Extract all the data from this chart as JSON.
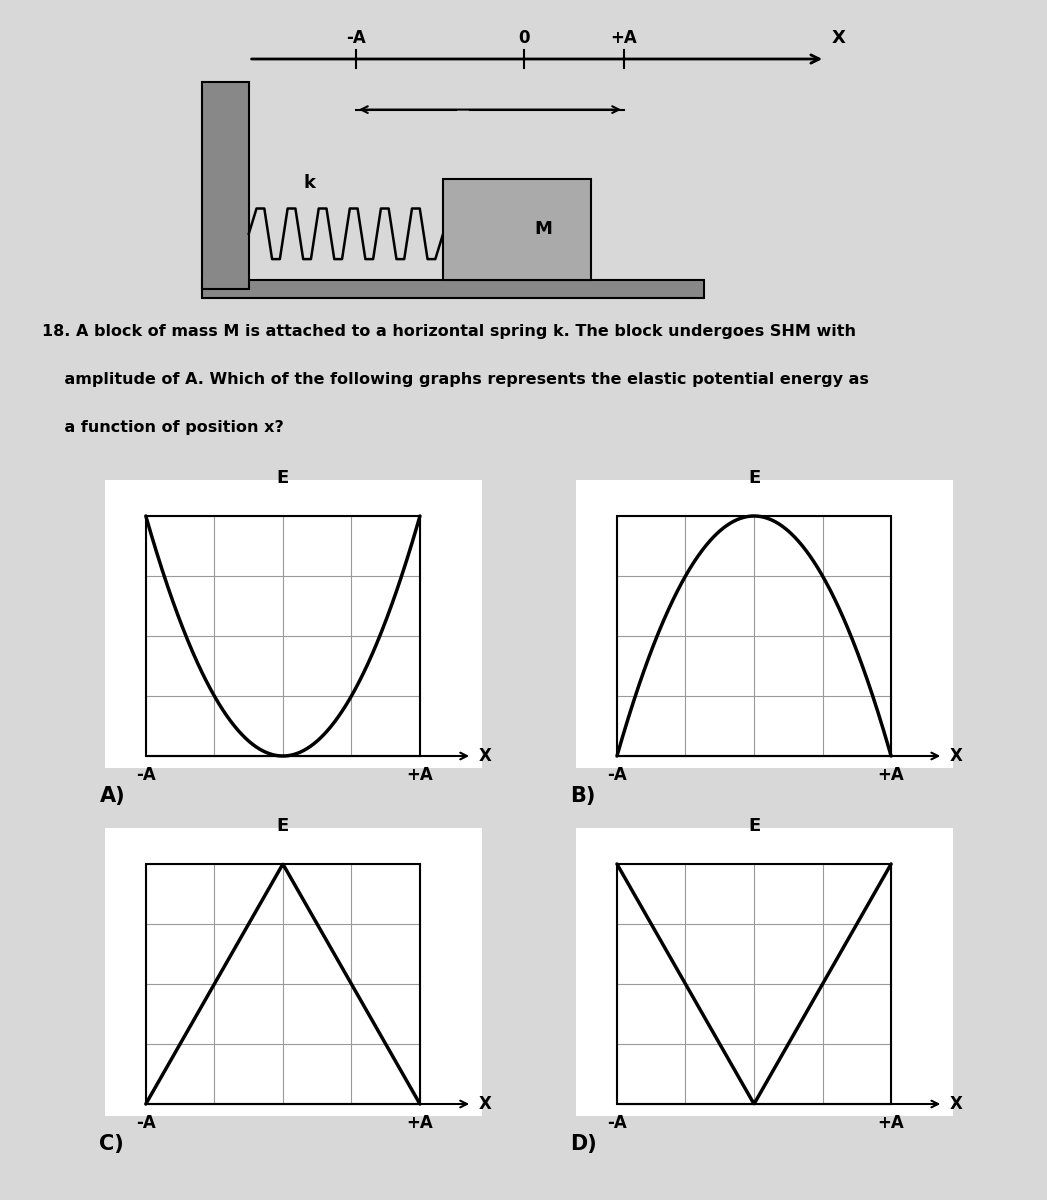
{
  "bg_color": "#d8d8d8",
  "graph_bg": "#ffffff",
  "line_color": "#000000",
  "line_width": 2.5,
  "grid_color": "#999999",
  "grid_lw": 0.8,
  "question_text_line1": "18. A block of mass M is attached to a horizontal spring k. The block undergoes SHM with",
  "question_text_line2": "    amplitude of A. Which of the following graphs represents the elastic potential energy as",
  "question_text_line3": "    a function of position x?",
  "subplot_labels": [
    "A)",
    "B)",
    "C)",
    "D)"
  ],
  "ylabel": "E",
  "xlabel": "X",
  "font_size_axis": 13,
  "font_size_tick": 12,
  "font_size_question": 11.5,
  "font_size_label": 15,
  "grid_rows": 4,
  "grid_cols": 4
}
